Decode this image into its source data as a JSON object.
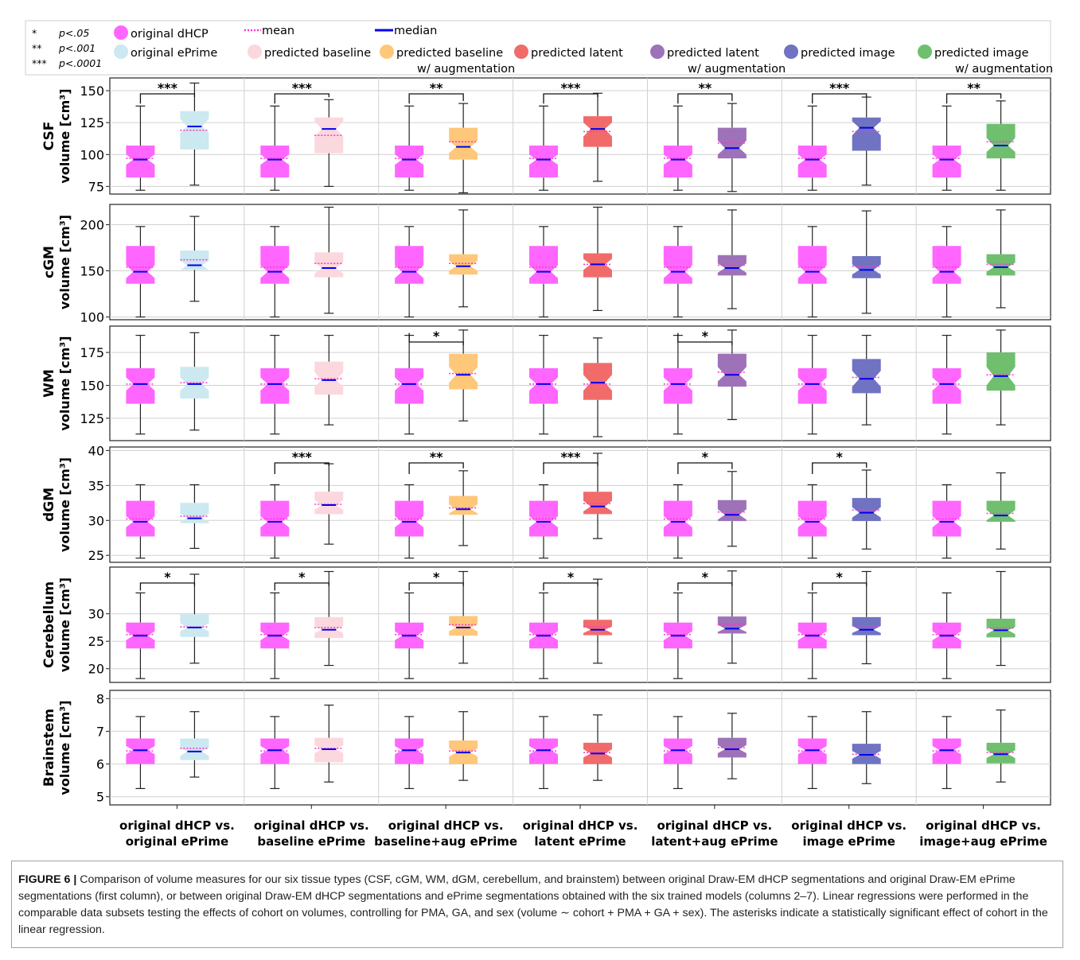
{
  "chart_data": {
    "type": "boxplot",
    "colors": {
      "original dHCP": "#ff66ff",
      "original ePrime": "#cce8f0",
      "predicted baseline": "#fbd7de",
      "predicted baseline w/ augmentation": "#ffc77a",
      "predicted latent": "#f26b6b",
      "predicted latent w/ augmentation": "#9e72b8",
      "predicted image": "#6f73c2",
      "predicted image w/ augmentation": "#6fbf6f",
      "mean": "#ff33cc",
      "median": "#0000ee"
    },
    "legend": {
      "significance": [
        {
          "symbol": "*",
          "label": "p<.05"
        },
        {
          "symbol": "**",
          "label": "p<.001"
        },
        {
          "symbol": "***",
          "label": "p<.0001"
        }
      ],
      "groups": [
        {
          "key": "dhcp",
          "line1": "original dHCP",
          "line2": ""
        },
        {
          "key": "eprime",
          "line1": "original ePrime",
          "line2": ""
        },
        {
          "key": "baseline",
          "line1": "predicted baseline",
          "line2": ""
        },
        {
          "key": "baseline_aug",
          "line1": "predicted baseline",
          "line2": "w/ augmentation"
        },
        {
          "key": "latent",
          "line1": "predicted latent",
          "line2": ""
        },
        {
          "key": "latent_aug",
          "line1": "predicted latent",
          "line2": "w/ augmentation"
        },
        {
          "key": "image",
          "line1": "predicted image",
          "line2": ""
        },
        {
          "key": "image_aug",
          "line1": "predicted image",
          "line2": "w/ augmentation"
        }
      ],
      "mean_label": "mean",
      "median_label": "median",
      "placement": "top"
    },
    "columns": [
      {
        "line1": "original dHCP vs.",
        "line2": "original ePrime",
        "key": "eprime"
      },
      {
        "line1": "original dHCP vs.",
        "line2": "baseline ePrime",
        "key": "baseline"
      },
      {
        "line1": "original dHCP vs.",
        "line2": "baseline+aug ePrime",
        "key": "baseline_aug"
      },
      {
        "line1": "original dHCP vs.",
        "line2": "latent ePrime",
        "key": "latent"
      },
      {
        "line1": "original dHCP vs.",
        "line2": "latent+aug ePrime",
        "key": "latent_aug"
      },
      {
        "line1": "original dHCP vs.",
        "line2": "image ePrime",
        "key": "image"
      },
      {
        "line1": "original dHCP vs.",
        "line2": "image+aug ePrime",
        "key": "image_aug"
      }
    ],
    "grid": true,
    "rows": [
      {
        "name": "CSF",
        "ylabel": "volume [cm³]",
        "ylim": [
          69,
          160
        ],
        "yticks": [
          75,
          100,
          125,
          150
        ],
        "dhcp": {
          "wlo": 72,
          "q1": 82,
          "med": 96,
          "mean": 97,
          "q3": 107,
          "whi": 138,
          "nlo": 92,
          "nhi": 100
        },
        "cols": [
          {
            "wlo": 76,
            "q1": 104,
            "med": 122,
            "mean": 119,
            "q3": 134,
            "whi": 156,
            "nlo": 117,
            "nhi": 128,
            "sig": "***"
          },
          {
            "wlo": 75,
            "q1": 101,
            "med": 120,
            "mean": 115,
            "q3": 129,
            "whi": 143,
            "nlo": 114,
            "nhi": 126,
            "sig": "***"
          },
          {
            "wlo": 70,
            "q1": 96,
            "med": 106,
            "mean": 110,
            "q3": 121,
            "whi": 140,
            "nlo": 101,
            "nhi": 111,
            "sig": "**"
          },
          {
            "wlo": 79,
            "q1": 106,
            "med": 120,
            "mean": 118,
            "q3": 130,
            "whi": 148,
            "nlo": 114,
            "nhi": 125,
            "sig": "***"
          },
          {
            "wlo": 71,
            "q1": 97,
            "med": 105,
            "mean": 109,
            "q3": 121,
            "whi": 140,
            "nlo": 100,
            "nhi": 111,
            "sig": "**"
          },
          {
            "wlo": 76,
            "q1": 103,
            "med": 121,
            "mean": 118,
            "q3": 129,
            "whi": 145,
            "nlo": 115,
            "nhi": 126,
            "sig": "***"
          },
          {
            "wlo": 72,
            "q1": 97,
            "med": 107,
            "mean": 110,
            "q3": 124,
            "whi": 142,
            "nlo": 102,
            "nhi": 113,
            "sig": "**"
          }
        ]
      },
      {
        "name": "cGM",
        "ylabel": "volume [cm³]",
        "ylim": [
          97,
          222
        ],
        "yticks": [
          100,
          150,
          200
        ],
        "dhcp": {
          "wlo": 100,
          "q1": 136,
          "med": 149,
          "mean": 154,
          "q3": 177,
          "whi": 198,
          "nlo": 142,
          "nhi": 156
        },
        "cols": [
          {
            "wlo": 117,
            "q1": 151,
            "med": 156,
            "mean": 162,
            "q3": 172,
            "whi": 209,
            "nlo": 151,
            "nhi": 161,
            "sig": ""
          },
          {
            "wlo": 104,
            "q1": 143,
            "med": 153,
            "mean": 158,
            "q3": 170,
            "whi": 219,
            "nlo": 147,
            "nhi": 159,
            "sig": ""
          },
          {
            "wlo": 111,
            "q1": 146,
            "med": 155,
            "mean": 158,
            "q3": 168,
            "whi": 216,
            "nlo": 150,
            "nhi": 161,
            "sig": ""
          },
          {
            "wlo": 107,
            "q1": 143,
            "med": 157,
            "mean": 157,
            "q3": 169,
            "whi": 219,
            "nlo": 151,
            "nhi": 163,
            "sig": ""
          },
          {
            "wlo": 109,
            "q1": 145,
            "med": 153,
            "mean": 156,
            "q3": 167,
            "whi": 216,
            "nlo": 148,
            "nhi": 158,
            "sig": ""
          },
          {
            "wlo": 104,
            "q1": 142,
            "med": 151,
            "mean": 155,
            "q3": 166,
            "whi": 215,
            "nlo": 146,
            "nhi": 157,
            "sig": ""
          },
          {
            "wlo": 110,
            "q1": 145,
            "med": 154,
            "mean": 157,
            "q3": 168,
            "whi": 216,
            "nlo": 149,
            "nhi": 159,
            "sig": ""
          }
        ]
      },
      {
        "name": "WM",
        "ylabel": "volume [cm³]",
        "ylim": [
          108,
          195
        ],
        "yticks": [
          125,
          150,
          175
        ],
        "dhcp": {
          "wlo": 113,
          "q1": 136,
          "med": 151,
          "mean": 151,
          "q3": 163,
          "whi": 188,
          "nlo": 146,
          "nhi": 156
        },
        "cols": [
          {
            "wlo": 116,
            "q1": 140,
            "med": 151,
            "mean": 152,
            "q3": 164,
            "whi": 190,
            "nlo": 146,
            "nhi": 156,
            "sig": ""
          },
          {
            "wlo": 120,
            "q1": 143,
            "med": 154,
            "mean": 155,
            "q3": 168,
            "whi": 188,
            "nlo": 149,
            "nhi": 160,
            "sig": ""
          },
          {
            "wlo": 123,
            "q1": 147,
            "med": 158,
            "mean": 159,
            "q3": 174,
            "whi": 192,
            "nlo": 152,
            "nhi": 164,
            "sig": "*"
          },
          {
            "wlo": 111,
            "q1": 139,
            "med": 152,
            "mean": 151,
            "q3": 167,
            "whi": 186,
            "nlo": 146,
            "nhi": 158,
            "sig": ""
          },
          {
            "wlo": 124,
            "q1": 149,
            "med": 158,
            "mean": 160,
            "q3": 174,
            "whi": 192,
            "nlo": 153,
            "nhi": 164,
            "sig": "*"
          },
          {
            "wlo": 120,
            "q1": 144,
            "med": 155,
            "mean": 156,
            "q3": 170,
            "whi": 188,
            "nlo": 149,
            "nhi": 161,
            "sig": ""
          },
          {
            "wlo": 120,
            "q1": 146,
            "med": 157,
            "mean": 158,
            "q3": 175,
            "whi": 192,
            "nlo": 150,
            "nhi": 164,
            "sig": ""
          }
        ]
      },
      {
        "name": "dGM",
        "ylabel": "volume [cm³]",
        "ylim": [
          24,
          40.5
        ],
        "yticks": [
          25,
          30,
          35,
          40
        ],
        "dhcp": {
          "wlo": 24.6,
          "q1": 27.7,
          "med": 29.8,
          "mean": 30.2,
          "q3": 32.8,
          "whi": 35.1,
          "nlo": 29.0,
          "nhi": 30.6
        },
        "cols": [
          {
            "wlo": 26.0,
            "q1": 29.6,
            "med": 30.3,
            "mean": 30.6,
            "q3": 32.5,
            "whi": 35.1,
            "nlo": 29.8,
            "nhi": 31.0,
            "sig": ""
          },
          {
            "wlo": 26.6,
            "q1": 30.9,
            "med": 32.2,
            "mean": 32.3,
            "q3": 34.1,
            "whi": 38.1,
            "nlo": 31.5,
            "nhi": 32.9,
            "sig": "***"
          },
          {
            "wlo": 26.4,
            "q1": 30.8,
            "med": 31.6,
            "mean": 31.8,
            "q3": 33.5,
            "whi": 37.1,
            "nlo": 31.0,
            "nhi": 32.3,
            "sig": "**"
          },
          {
            "wlo": 27.4,
            "q1": 30.9,
            "med": 32.0,
            "mean": 32.4,
            "q3": 34.1,
            "whi": 39.6,
            "nlo": 31.3,
            "nhi": 32.8,
            "sig": "***"
          },
          {
            "wlo": 26.3,
            "q1": 29.9,
            "med": 30.8,
            "mean": 31.2,
            "q3": 32.9,
            "whi": 37.0,
            "nlo": 30.1,
            "nhi": 31.6,
            "sig": "*"
          },
          {
            "wlo": 25.9,
            "q1": 29.9,
            "med": 31.1,
            "mean": 31.5,
            "q3": 33.2,
            "whi": 37.2,
            "nlo": 30.4,
            "nhi": 31.9,
            "sig": "*"
          },
          {
            "wlo": 25.9,
            "q1": 29.8,
            "med": 30.7,
            "mean": 31.0,
            "q3": 32.8,
            "whi": 36.8,
            "nlo": 30.0,
            "nhi": 31.5,
            "sig": ""
          }
        ]
      },
      {
        "name": "Cerebellum",
        "ylabel": "volume [cm³]",
        "ylim": [
          17.5,
          38.5
        ],
        "yticks": [
          20,
          25,
          30
        ],
        "dhcp": {
          "wlo": 18.2,
          "q1": 23.7,
          "med": 26.0,
          "mean": 26.2,
          "q3": 28.4,
          "whi": 33.8,
          "nlo": 25.2,
          "nhi": 26.8
        },
        "cols": [
          {
            "wlo": 21.0,
            "q1": 25.8,
            "med": 27.5,
            "mean": 27.6,
            "q3": 29.9,
            "whi": 37.2,
            "nlo": 26.8,
            "nhi": 28.3,
            "sig": "*"
          },
          {
            "wlo": 20.6,
            "q1": 25.6,
            "med": 27.1,
            "mean": 27.5,
            "q3": 29.4,
            "whi": 37.7,
            "nlo": 26.5,
            "nhi": 27.8,
            "sig": "*"
          },
          {
            "wlo": 21.0,
            "q1": 26.0,
            "med": 27.5,
            "mean": 28.0,
            "q3": 29.6,
            "whi": 37.7,
            "nlo": 26.8,
            "nhi": 28.1,
            "sig": "*"
          },
          {
            "wlo": 21.0,
            "q1": 26.1,
            "med": 27.1,
            "mean": 27.6,
            "q3": 28.9,
            "whi": 36.3,
            "nlo": 26.5,
            "nhi": 27.7,
            "sig": "*"
          },
          {
            "wlo": 21.0,
            "q1": 26.4,
            "med": 27.3,
            "mean": 28.0,
            "q3": 29.5,
            "whi": 37.8,
            "nlo": 26.7,
            "nhi": 28.0,
            "sig": "*"
          },
          {
            "wlo": 20.9,
            "q1": 26.1,
            "med": 27.1,
            "mean": 27.8,
            "q3": 29.4,
            "whi": 37.7,
            "nlo": 26.5,
            "nhi": 27.8,
            "sig": "*"
          },
          {
            "wlo": 20.6,
            "q1": 25.7,
            "med": 27.0,
            "mean": 27.4,
            "q3": 29.1,
            "whi": 37.7,
            "nlo": 26.3,
            "nhi": 27.6,
            "sig": ""
          }
        ]
      },
      {
        "name": "Brainstem",
        "ylabel": "volume [cm³]",
        "ylim": [
          4.75,
          8.25
        ],
        "yticks": [
          5,
          6,
          7,
          8
        ],
        "dhcp": {
          "wlo": 5.25,
          "q1": 6.0,
          "med": 6.42,
          "mean": 6.4,
          "q3": 6.78,
          "whi": 7.45,
          "nlo": 6.3,
          "nhi": 6.55
        },
        "cols": [
          {
            "wlo": 5.6,
            "q1": 6.12,
            "med": 6.38,
            "mean": 6.48,
            "q3": 6.78,
            "whi": 7.6,
            "nlo": 6.25,
            "nhi": 6.5,
            "sig": ""
          },
          {
            "wlo": 5.45,
            "q1": 6.05,
            "med": 6.45,
            "mean": 6.48,
            "q3": 6.8,
            "whi": 7.8,
            "nlo": 6.33,
            "nhi": 6.58,
            "sig": ""
          },
          {
            "wlo": 5.5,
            "q1": 6.0,
            "med": 6.35,
            "mean": 6.4,
            "q3": 6.72,
            "whi": 7.6,
            "nlo": 6.22,
            "nhi": 6.48,
            "sig": ""
          },
          {
            "wlo": 5.5,
            "q1": 6.0,
            "med": 6.32,
            "mean": 6.35,
            "q3": 6.65,
            "whi": 7.5,
            "nlo": 6.2,
            "nhi": 6.45,
            "sig": ""
          },
          {
            "wlo": 5.55,
            "q1": 6.2,
            "med": 6.45,
            "mean": 6.5,
            "q3": 6.8,
            "whi": 7.55,
            "nlo": 6.33,
            "nhi": 6.58,
            "sig": ""
          },
          {
            "wlo": 5.4,
            "q1": 6.0,
            "med": 6.28,
            "mean": 6.3,
            "q3": 6.62,
            "whi": 7.6,
            "nlo": 6.16,
            "nhi": 6.4,
            "sig": ""
          },
          {
            "wlo": 5.45,
            "q1": 6.02,
            "med": 6.3,
            "mean": 6.35,
            "q3": 6.65,
            "whi": 7.65,
            "nlo": 6.18,
            "nhi": 6.42,
            "sig": ""
          }
        ]
      }
    ]
  },
  "caption": {
    "figure_label": "FIGURE 6 |",
    "text": "Comparison of volume measures for our six tissue types (CSF, cGM, WM, dGM, cerebellum, and brainstem) between original Draw-EM dHCP segmentations and original Draw-EM ePrime segmentations (first column), or between original Draw-EM dHCP segmentations and ePrime segmentations obtained with the six trained models (columns 2–7). Linear regressions were performed in the comparable data subsets testing the effects of cohort on volumes, controlling for PMA, GA, and sex (volume ∼ cohort + PMA + GA + sex). The asterisks indicate a statistically significant effect of cohort in the linear regression."
  }
}
